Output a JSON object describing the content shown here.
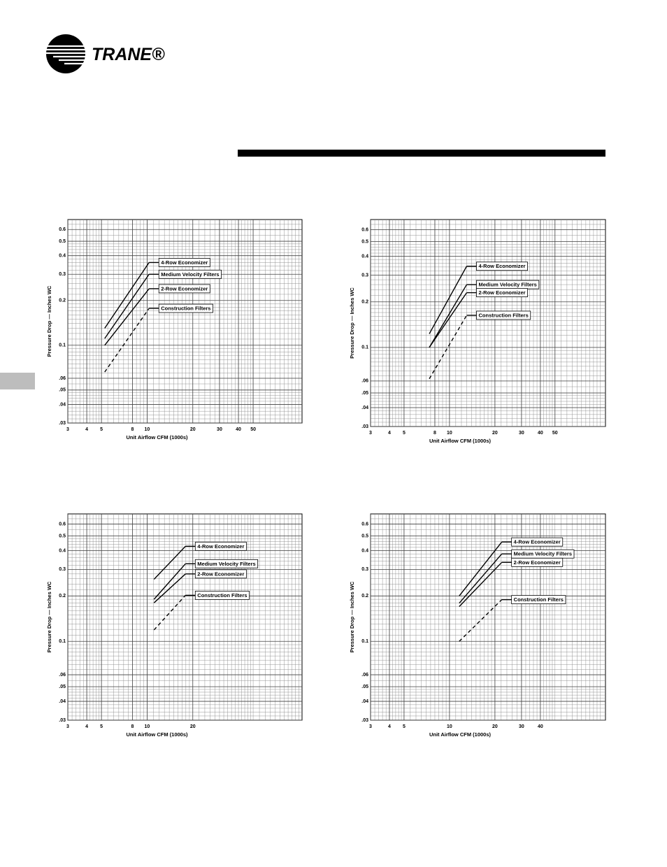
{
  "header": {
    "logo": "TRANE®"
  },
  "chart_data": [
    {
      "type": "line",
      "xscale": "log",
      "yscale": "log",
      "grid": true,
      "ylabel": "Pressure Drop — Inches WC",
      "xlabel": "Unit Airflow CFM (1000s)",
      "xlim": [
        3,
        105
      ],
      "ylim": [
        0.03,
        0.7
      ],
      "xticks": [
        3,
        4,
        5,
        8,
        10,
        20,
        30,
        40,
        50
      ],
      "yticks": [
        {
          "value": 0.03,
          "label": ".03"
        },
        {
          "value": 0.04,
          "label": ".04"
        },
        {
          "value": 0.05,
          "label": ".05"
        },
        {
          "value": 0.06,
          "label": ".06"
        },
        0.1,
        0.2,
        0.3,
        0.4,
        0.5,
        0.6
      ],
      "x": [
        5.25,
        10.3
      ],
      "series": [
        {
          "name": "4-Row Economizer",
          "color": "#000000",
          "linestyle": "solid",
          "values": [
            0.13,
            0.36
          ]
        },
        {
          "name": "Medium Velocity Filters",
          "color": "#000000",
          "linestyle": "solid",
          "values": [
            0.111,
            0.3
          ]
        },
        {
          "name": "2-Row Economizer",
          "color": "#000000",
          "linestyle": "solid",
          "values": [
            0.1,
            0.24
          ]
        },
        {
          "name": "Construction Filters",
          "color": "#000000",
          "linestyle": "dashed",
          "values": [
            0.066,
            0.177
          ]
        }
      ]
    },
    {
      "type": "line",
      "xscale": "log",
      "yscale": "log",
      "grid": true,
      "ylabel": "Pressure Drop — Inches WC",
      "xlabel": "Unit Airflow CFM (1000s)",
      "xlim": [
        3,
        108
      ],
      "ylim": [
        0.03,
        0.7
      ],
      "xticks": [
        3,
        4,
        5,
        8,
        10,
        20,
        30,
        40,
        50
      ],
      "yticks": [
        {
          "value": 0.03,
          "label": ".03"
        },
        {
          "value": 0.04,
          "label": ".04"
        },
        {
          "value": 0.05,
          "label": ".05"
        },
        {
          "value": 0.06,
          "label": ".06"
        },
        0.1,
        0.2,
        0.3,
        0.4,
        0.5,
        0.6
      ],
      "x": [
        7.35,
        13
      ],
      "series": [
        {
          "name": "4-Row Economizer",
          "color": "#000000",
          "linestyle": "solid",
          "values": [
            0.123,
            0.344
          ]
        },
        {
          "name": "Medium Velocity Filters",
          "color": "#000000",
          "linestyle": "solid",
          "values": [
            0.1,
            0.26
          ]
        },
        {
          "name": "2-Row Economizer",
          "color": "#000000",
          "linestyle": "solid",
          "values": [
            0.1,
            0.23
          ]
        },
        {
          "name": "Construction Filters",
          "color": "#000000",
          "linestyle": "dashed",
          "values": [
            0.062,
            0.163
          ]
        }
      ]
    },
    {
      "type": "line",
      "xscale": "log",
      "yscale": "log",
      "grid": true,
      "ylabel": "Pressure Drop — Inches WC",
      "xlabel": "Unit Airflow CFM (1000s)",
      "xlim": [
        3,
        105
      ],
      "ylim": [
        0.03,
        0.7
      ],
      "xticks": [
        3,
        4,
        5,
        8,
        10,
        20
      ],
      "yticks": [
        {
          "value": 0.03,
          "label": ".03"
        },
        {
          "value": 0.04,
          "label": ".04"
        },
        {
          "value": 0.05,
          "label": ".05"
        },
        {
          "value": 0.06,
          "label": ".06"
        },
        0.1,
        0.2,
        0.3,
        0.4,
        0.5,
        0.6
      ],
      "x": [
        11.1,
        17.9
      ],
      "series": [
        {
          "name": "4-Row Economizer",
          "color": "#000000",
          "linestyle": "solid",
          "values": [
            0.258,
            0.427
          ]
        },
        {
          "name": "Medium Velocity Filters",
          "color": "#000000",
          "linestyle": "solid",
          "values": [
            0.19,
            0.327
          ]
        },
        {
          "name": "2-Row Economizer",
          "color": "#000000",
          "linestyle": "solid",
          "values": [
            0.18,
            0.28
          ]
        },
        {
          "name": "Construction Filters",
          "color": "#000000",
          "linestyle": "dashed",
          "values": [
            0.119,
            0.202
          ]
        }
      ]
    },
    {
      "type": "line",
      "xscale": "log",
      "yscale": "log",
      "grid": true,
      "ylabel": "Pressure Drop — Inches WC",
      "xlabel": "Unit Airflow CFM (1000s)",
      "xlim": [
        3,
        108
      ],
      "ylim": [
        0.03,
        0.7
      ],
      "xticks": [
        3,
        4,
        5,
        10,
        20,
        30,
        40
      ],
      "yticks": [
        {
          "value": 0.03,
          "label": ".03"
        },
        {
          "value": 0.04,
          "label": ".04"
        },
        {
          "value": 0.05,
          "label": ".05"
        },
        {
          "value": 0.06,
          "label": ".06"
        },
        0.1,
        0.2,
        0.3,
        0.4,
        0.5,
        0.6
      ],
      "x": [
        11.6,
        22.2
      ],
      "series": [
        {
          "name": "4-Row Economizer",
          "color": "#000000",
          "linestyle": "solid",
          "values": [
            0.2,
            0.456
          ]
        },
        {
          "name": "Medium Velocity Filters",
          "color": "#000000",
          "linestyle": "solid",
          "values": [
            0.179,
            0.38
          ]
        },
        {
          "name": "2-Row Economizer",
          "color": "#000000",
          "linestyle": "solid",
          "values": [
            0.17,
            0.334
          ]
        },
        {
          "name": "Construction Filters",
          "color": "#000000",
          "linestyle": "dashed",
          "values": [
            0.1,
            0.189
          ]
        }
      ]
    }
  ]
}
